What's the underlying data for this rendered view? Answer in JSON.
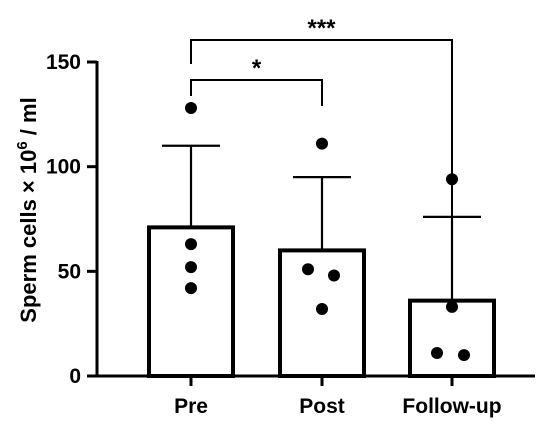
{
  "chart_data": {
    "type": "bar",
    "categories": [
      "Pre",
      "Post",
      "Follow-up"
    ],
    "values": [
      71,
      60,
      36
    ],
    "error_upper": [
      110,
      95,
      76
    ],
    "points": [
      [
        128,
        63,
        52,
        42
      ],
      [
        111,
        51,
        48,
        32
      ],
      [
        94,
        33,
        11,
        10
      ]
    ],
    "ylabel": {
      "prefix": "Sperm cells × 10",
      "superscript": "6",
      "suffix": " / ml"
    },
    "ylim": [
      0,
      150
    ],
    "yticks": [
      "0",
      "50",
      "100",
      "150"
    ],
    "significance": [
      {
        "from": 0,
        "to": 1,
        "label": "*"
      },
      {
        "from": 0,
        "to": 2,
        "label": "***"
      }
    ]
  }
}
